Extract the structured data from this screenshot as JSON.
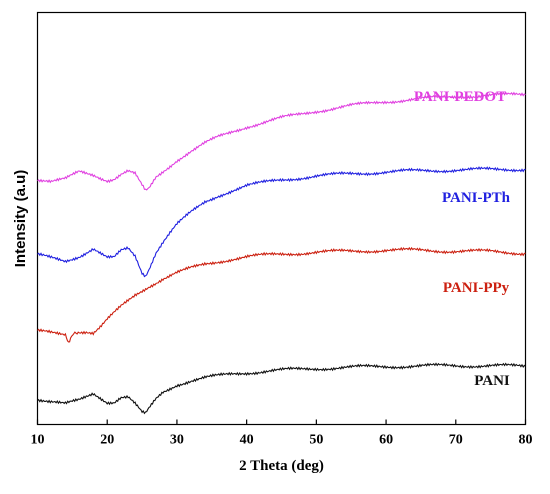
{
  "chart_data": {
    "type": "line",
    "xlabel": "2 Theta (deg)",
    "ylabel": "Intensity (a.u)",
    "xlim": [
      10,
      80
    ],
    "xticks": [
      10,
      20,
      30,
      40,
      50,
      60,
      70,
      80
    ],
    "yticks": "none",
    "grid": false,
    "legend": "inline labels at right end of each curve",
    "series": [
      {
        "name": "PANI-PEDOT",
        "color": "#e040e0",
        "x": [
          10,
          12,
          14,
          16,
          18,
          20,
          21,
          22,
          23,
          24,
          25,
          25.5,
          26,
          27,
          28,
          29,
          30,
          32,
          34,
          36,
          38,
          40,
          45,
          50,
          55,
          60,
          65,
          70,
          75,
          80
        ],
        "y": [
          59.5,
          58.9,
          59.5,
          61.4,
          60.7,
          59.3,
          59.6,
          60.7,
          61.4,
          60.7,
          57.9,
          56.6,
          57.2,
          60.0,
          61.4,
          62.8,
          64.2,
          66.3,
          68.2,
          69.8,
          71.1,
          72.3,
          74.4,
          76.1,
          77.4,
          78.4,
          79.1,
          79.6,
          79.9,
          80.1
        ]
      },
      {
        "name": "PANI-PTh",
        "color": "#2020e0",
        "x": [
          10,
          12,
          14,
          16,
          18,
          20,
          21,
          22,
          23,
          24,
          25,
          25.5,
          26,
          27,
          28,
          29,
          30,
          32,
          34,
          36,
          38,
          40,
          45,
          50,
          55,
          60,
          65,
          70,
          75,
          80
        ],
        "y": [
          41.1,
          40.4,
          39.7,
          40.9,
          42.7,
          40.4,
          40.4,
          42.1,
          42.7,
          40.9,
          36.9,
          36.2,
          37.9,
          41.9,
          44.4,
          46.6,
          48.6,
          51.4,
          53.9,
          55.6,
          56.9,
          58.0,
          59.4,
          60.3,
          60.9,
          61.3,
          61.6,
          61.8,
          61.9,
          62.0
        ]
      },
      {
        "name": "PANI-PPy",
        "color": "#cc2010",
        "x": [
          10,
          12,
          14,
          14.6,
          15.2,
          16,
          17,
          18,
          19,
          20,
          22,
          24,
          26,
          28,
          30,
          32,
          34,
          36,
          38,
          40,
          45,
          50,
          55,
          60,
          65,
          70,
          75,
          80
        ],
        "y": [
          22.6,
          22.2,
          21.9,
          19.9,
          22.2,
          22.6,
          22.6,
          22.2,
          23.6,
          25.4,
          28.6,
          31.4,
          33.6,
          35.4,
          36.8,
          37.9,
          38.9,
          39.6,
          40.2,
          40.7,
          41.4,
          41.8,
          42.1,
          42.3,
          42.3,
          42.1,
          42.0,
          41.6
        ]
      },
      {
        "name": "PANI",
        "color": "#101010",
        "x": [
          10,
          12,
          14,
          16,
          18,
          19,
          20,
          21,
          22,
          23,
          24,
          25,
          25.5,
          26,
          27,
          28,
          29,
          30,
          32,
          34,
          36,
          38,
          40,
          45,
          50,
          55,
          60,
          65,
          70,
          75,
          80
        ],
        "y": [
          6.2,
          5.5,
          4.9,
          5.9,
          7.6,
          6.6,
          5.5,
          5.5,
          6.6,
          6.6,
          4.9,
          2.8,
          2.5,
          3.8,
          6.2,
          7.9,
          8.8,
          9.7,
          10.6,
          11.3,
          11.8,
          12.3,
          12.6,
          13.2,
          13.6,
          13.9,
          14.1,
          14.2,
          14.3,
          14.3,
          14.1
        ]
      }
    ]
  }
}
